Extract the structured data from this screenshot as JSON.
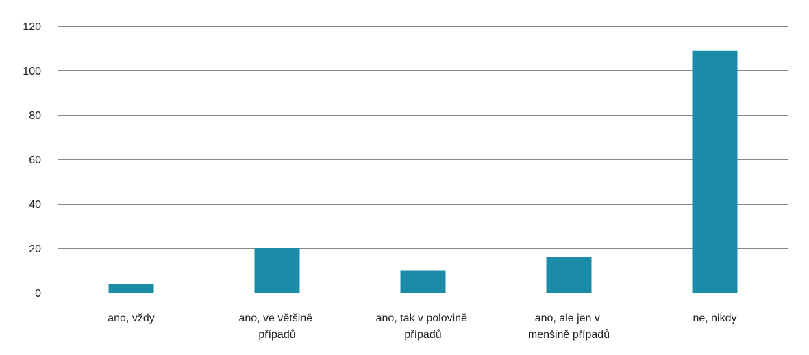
{
  "chart_data": {
    "type": "bar",
    "categories": [
      "ano, vždy",
      "ano, ve většině případů",
      "ano, tak v polovině případů",
      "ano, ale jen v menšině případů",
      "ne, nikdy"
    ],
    "values": [
      4,
      20,
      10,
      16,
      109
    ],
    "color": "#1b8ba8",
    "ylim": [
      0,
      120
    ],
    "yticks": [
      0,
      20,
      40,
      60,
      80,
      100,
      120
    ],
    "grid": true
  }
}
